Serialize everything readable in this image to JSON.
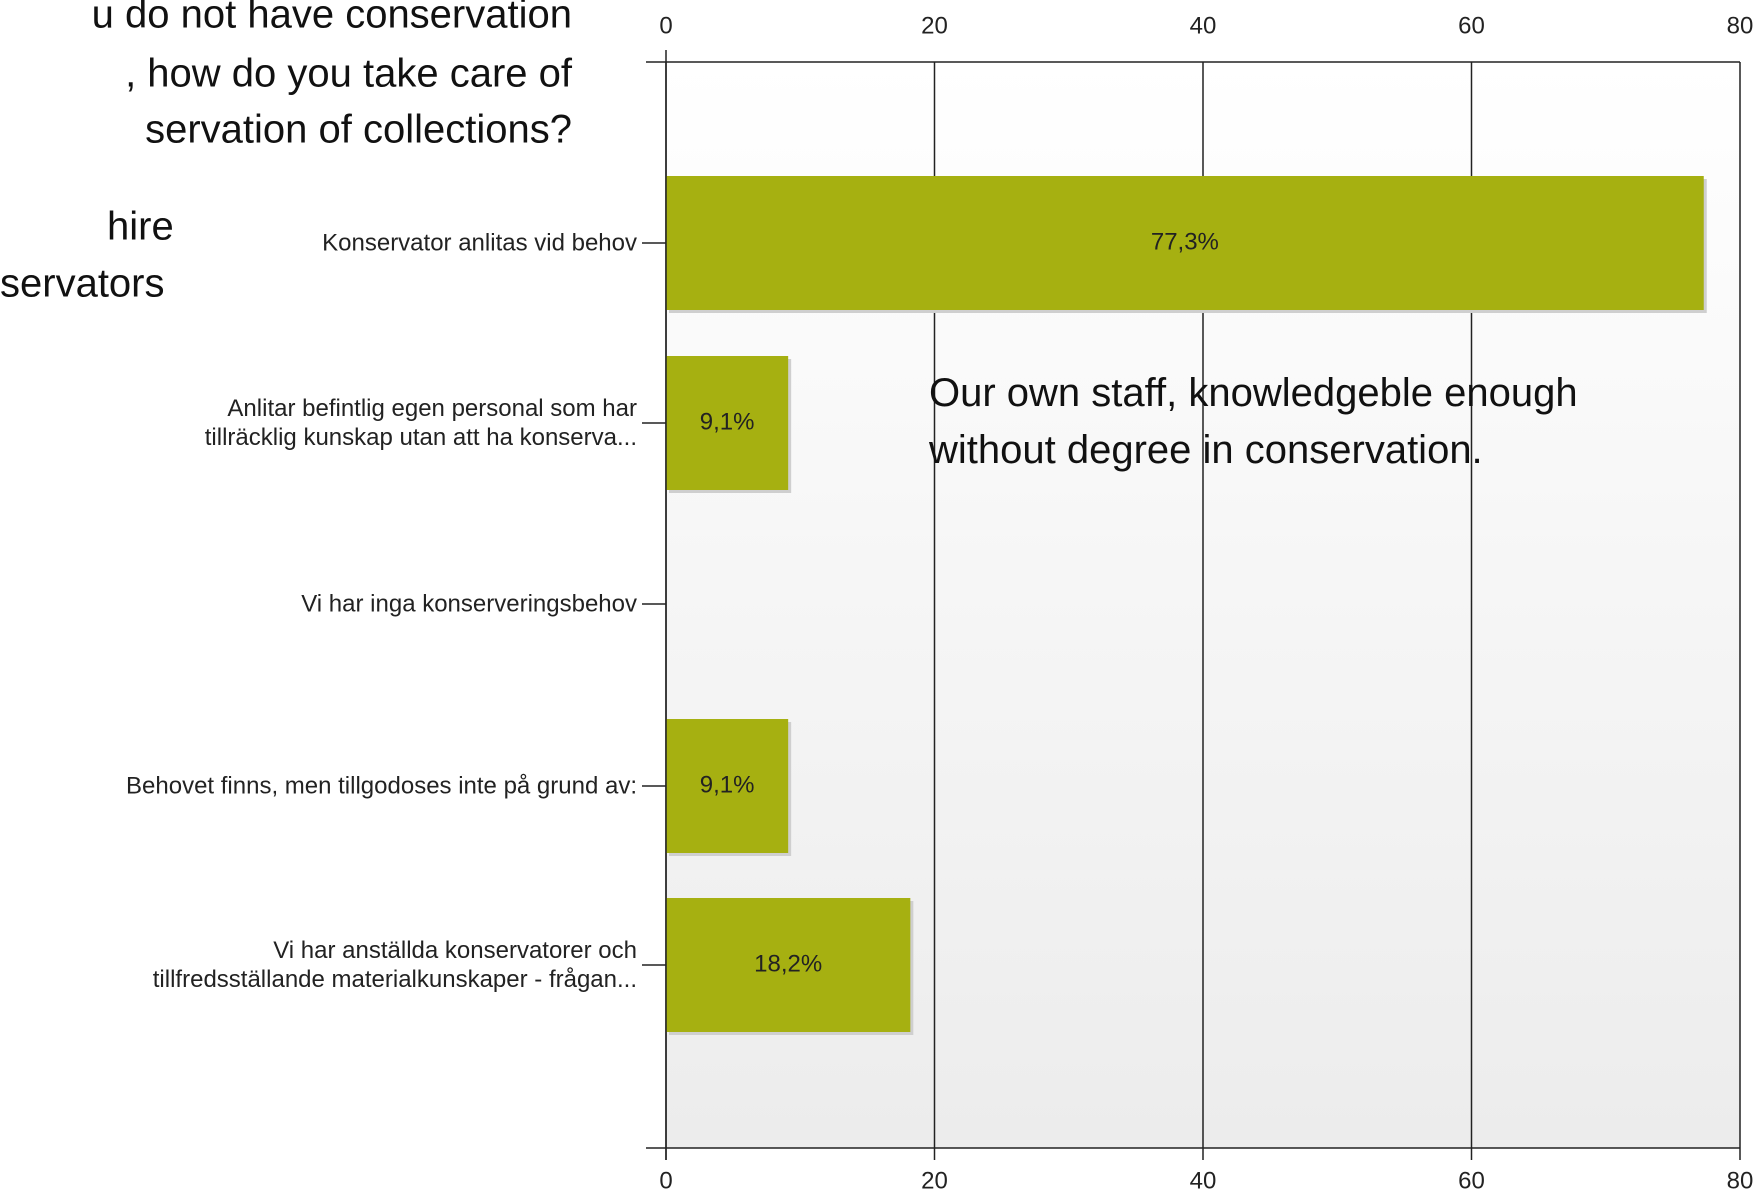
{
  "chart_data": {
    "type": "barh",
    "annotations": [
      "u do not have conservation",
      ", how do you take care of",
      "servation of collections?",
      "hire",
      "servators",
      "Our own staff, knowledgeble enough\nwithout degree in conservation."
    ],
    "categories": [
      "Konservator anlitas vid behov",
      "Anlitar befintlig egen personal som har\ntillräcklig kunskap utan att ha konserva...",
      "Vi har inga konserveringsbehov",
      "Behovet finns, men tillgodoses inte på grund av:",
      "Vi har anställda konservatorer och\ntillfredsställande materialkunskaper - frågan..."
    ],
    "values": [
      77.3,
      9.1,
      null,
      9.1,
      18.2
    ],
    "value_labels": [
      "77,3%",
      "9,1%",
      null,
      "9,1%",
      "18,2%"
    ],
    "color": "#a6b011",
    "xlim": [
      0,
      80
    ],
    "xticks": [
      0,
      20,
      40,
      60,
      80
    ],
    "grid": true
  }
}
